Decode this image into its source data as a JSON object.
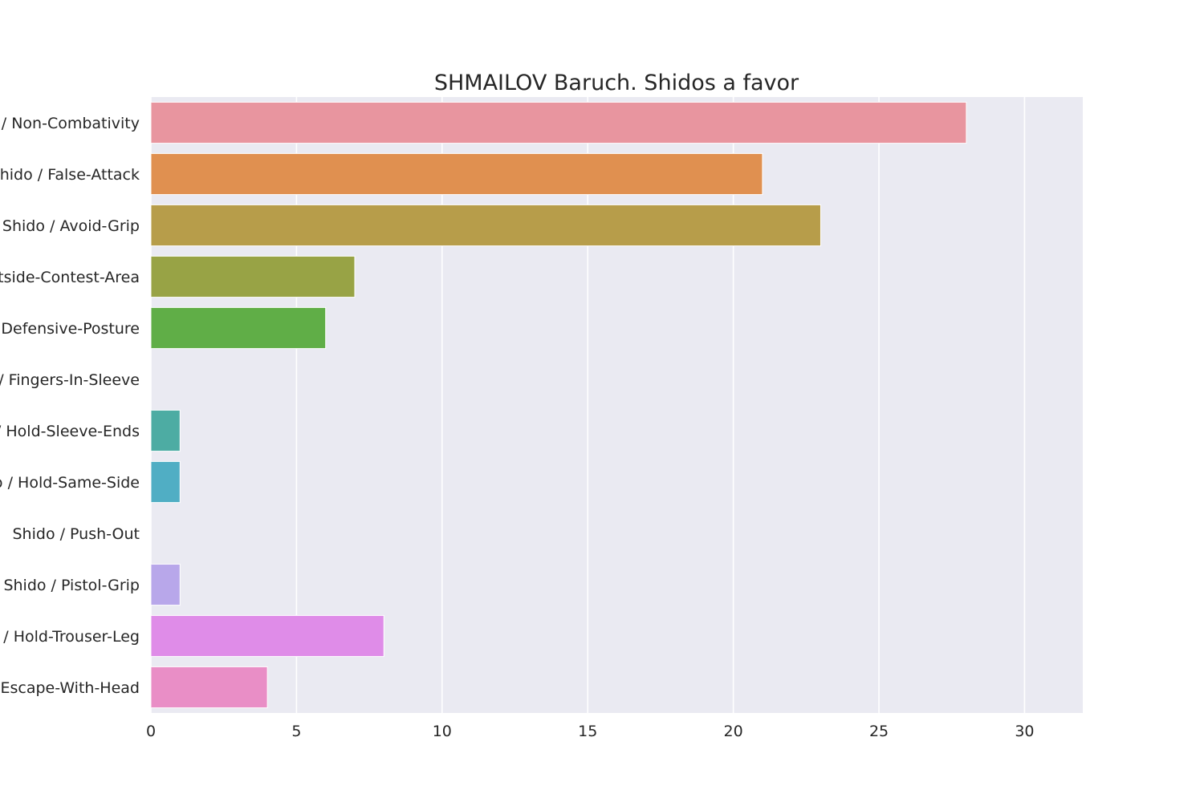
{
  "chart_data": {
    "type": "bar",
    "orientation": "horizontal",
    "title": "SHMAILOV Baruch. Shidos a favor",
    "xlabel": "",
    "ylabel": "",
    "categories": [
      "Shido / Non-Combativity",
      "Shido / False-Attack",
      "Shido / Avoid-Grip",
      "Shido / Outside-Contest-Area",
      "Shido / Defensive-Posture",
      "Shido / Fingers-In-Sleeve",
      "Shido / Hold-Sleeve-Ends",
      "Shido / Hold-Same-Side",
      "Shido / Push-Out",
      "Shido / Pistol-Grip",
      "Shido / Hold-Trouser-Leg",
      "Shido / Escape-With-Head"
    ],
    "values": [
      28,
      21,
      23,
      7,
      6,
      0,
      1,
      1,
      0,
      1,
      8,
      4
    ],
    "colors": [
      "#e8959f",
      "#e09050",
      "#b79d4a",
      "#98a345",
      "#60ae47",
      "#4bb092",
      "#4daca3",
      "#50aec4",
      "#8aa9e6",
      "#b8a7ea",
      "#df8ce8",
      "#e98ec6"
    ],
    "xlim": [
      0,
      32
    ],
    "xticks": [
      0,
      5,
      10,
      15,
      20,
      25,
      30
    ],
    "grid": true,
    "background": "#eaeaf2",
    "gridColor": "#ffffff"
  }
}
